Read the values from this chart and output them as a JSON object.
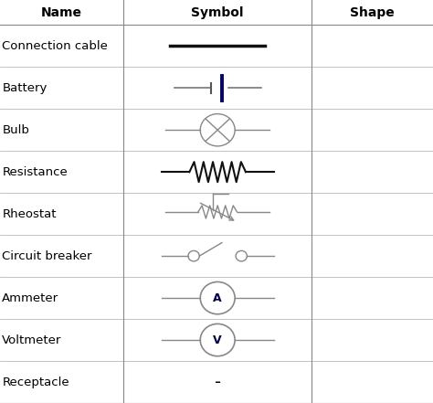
{
  "headers": [
    "Name",
    "Symbol",
    "Shape"
  ],
  "rows": [
    "Connection cable",
    "Battery",
    "Bulb",
    "Resistance",
    "Rheostat",
    "Circuit breaker",
    "Ammeter",
    "Voltmeter",
    "Receptacle"
  ],
  "bg_color": "#ffffff",
  "text_color": "#000000",
  "header_fontsize": 10,
  "row_fontsize": 9.5,
  "symbol_color": "#000000",
  "col1": 0.285,
  "col2": 0.72,
  "fig_width": 4.74,
  "fig_height": 4.41,
  "dpi": 100
}
